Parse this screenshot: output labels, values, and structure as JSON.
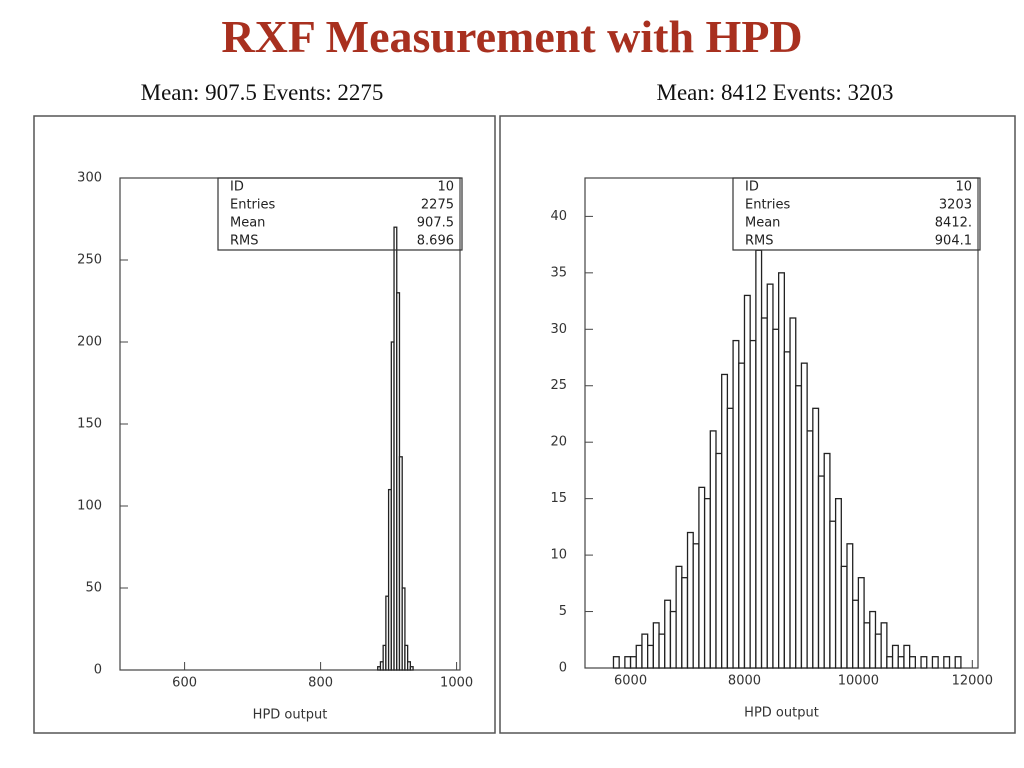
{
  "title": "RXF Measurement with HPD",
  "chart_data": [
    {
      "type": "histogram",
      "subtitle": "Mean: 907.5   Events: 2275",
      "x_label": "HPD output",
      "bins": [
        884,
        888,
        892,
        896,
        900,
        904,
        908,
        912,
        916,
        920,
        924,
        928,
        932,
        936
      ],
      "values": [
        2,
        5,
        15,
        45,
        110,
        200,
        270,
        230,
        130,
        50,
        15,
        5,
        2
      ],
      "color": "#222222",
      "xlim": [
        505,
        1005
      ],
      "xticks": [
        600,
        800,
        1000
      ],
      "ylim": [
        0,
        300
      ],
      "yticks": [
        0,
        50,
        100,
        150,
        200,
        250,
        300
      ],
      "stats": [
        {
          "label": "ID",
          "value": "10"
        },
        {
          "label": "Entries",
          "value": "2275"
        },
        {
          "label": "Mean",
          "value": "907.5"
        },
        {
          "label": "RMS",
          "value": "8.696"
        }
      ]
    },
    {
      "type": "histogram",
      "subtitle": "Mean: 8412   Events: 3203",
      "x_label": "HPD output",
      "bins": [
        5700,
        5800,
        5900,
        6000,
        6100,
        6200,
        6300,
        6400,
        6500,
        6600,
        6700,
        6800,
        6900,
        7000,
        7100,
        7200,
        7300,
        7400,
        7500,
        7600,
        7700,
        7800,
        7900,
        8000,
        8100,
        8200,
        8300,
        8400,
        8500,
        8600,
        8700,
        8800,
        8900,
        9000,
        9100,
        9200,
        9300,
        9400,
        9500,
        9600,
        9700,
        9800,
        9900,
        10000,
        10100,
        10200,
        10300,
        10400,
        10500,
        10600,
        10700,
        10800,
        10900,
        11000,
        11100,
        11200,
        11300,
        11400,
        11500,
        11600,
        11700,
        11800
      ],
      "values": [
        1,
        0,
        1,
        1,
        2,
        3,
        2,
        4,
        3,
        6,
        5,
        9,
        8,
        12,
        11,
        16,
        15,
        21,
        19,
        26,
        23,
        29,
        27,
        33,
        29,
        37,
        31,
        34,
        30,
        35,
        28,
        31,
        25,
        27,
        21,
        23,
        17,
        19,
        13,
        15,
        9,
        11,
        6,
        8,
        4,
        5,
        3,
        4,
        1,
        2,
        1,
        2,
        1,
        0,
        1,
        0,
        1,
        0,
        1,
        0,
        1
      ],
      "color": "#222222",
      "xlim": [
        5200,
        12100
      ],
      "xticks": [
        6000,
        8000,
        10000,
        12000
      ],
      "ylim": [
        0,
        43.4
      ],
      "yticks": [
        0,
        5,
        10,
        15,
        20,
        25,
        30,
        35,
        40
      ],
      "stats": [
        {
          "label": "ID",
          "value": "10"
        },
        {
          "label": "Entries",
          "value": "3203"
        },
        {
          "label": "Mean",
          "value": "8412."
        },
        {
          "label": "RMS",
          "value": "904.1"
        }
      ]
    }
  ]
}
